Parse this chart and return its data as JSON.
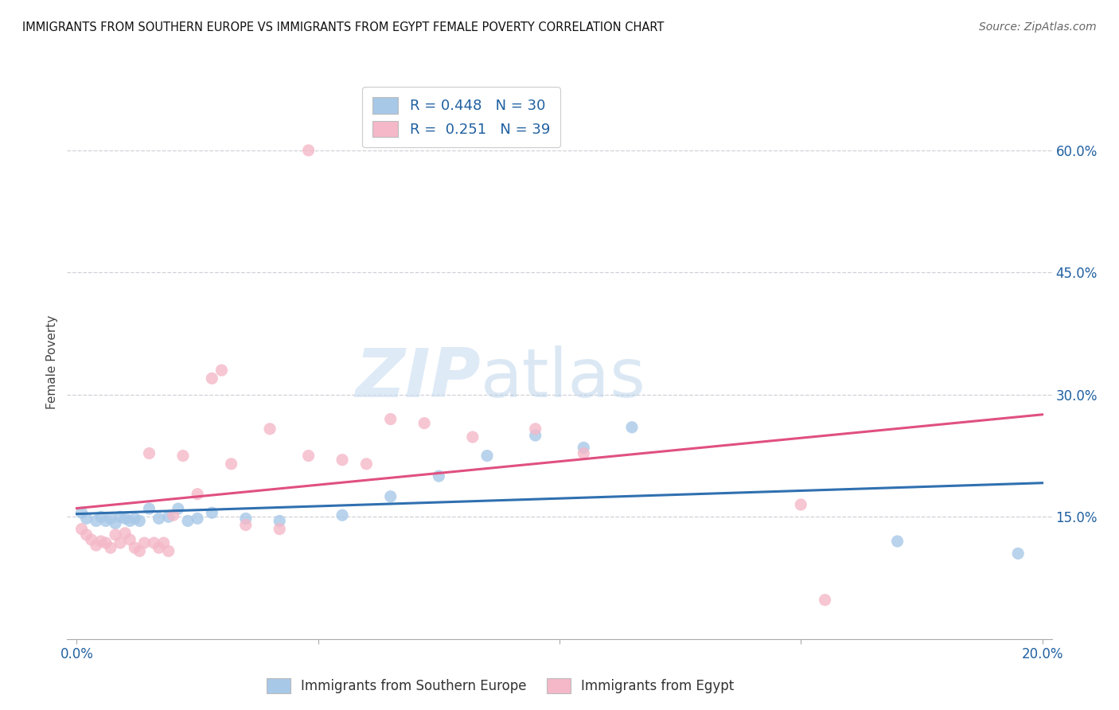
{
  "title": "IMMIGRANTS FROM SOUTHERN EUROPE VS IMMIGRANTS FROM EGYPT FEMALE POVERTY CORRELATION CHART",
  "source": "Source: ZipAtlas.com",
  "ylabel": "Female Poverty",
  "ylabel_right_ticks": [
    "60.0%",
    "45.0%",
    "30.0%",
    "15.0%"
  ],
  "ylabel_right_vals": [
    0.6,
    0.45,
    0.3,
    0.15
  ],
  "xlim": [
    -0.002,
    0.202
  ],
  "ylim": [
    0.0,
    0.68
  ],
  "R_blue": 0.448,
  "N_blue": 30,
  "R_pink": 0.251,
  "N_pink": 39,
  "legend_label_blue": "Immigrants from Southern Europe",
  "legend_label_pink": "Immigrants from Egypt",
  "blue_color": "#a8c8e8",
  "pink_color": "#f4b8c8",
  "blue_line_color": "#3070b0",
  "pink_line_color": "#e05080",
  "grid_color": "#d0d0d8",
  "background_color": "#ffffff",
  "blue_x": [
    0.001,
    0.002,
    0.004,
    0.005,
    0.006,
    0.007,
    0.008,
    0.009,
    0.01,
    0.011,
    0.012,
    0.013,
    0.015,
    0.017,
    0.019,
    0.021,
    0.023,
    0.025,
    0.028,
    0.035,
    0.042,
    0.055,
    0.065,
    0.075,
    0.085,
    0.095,
    0.105,
    0.115,
    0.17,
    0.195
  ],
  "blue_y": [
    0.155,
    0.148,
    0.145,
    0.15,
    0.145,
    0.148,
    0.142,
    0.15,
    0.148,
    0.145,
    0.148,
    0.145,
    0.16,
    0.148,
    0.15,
    0.16,
    0.145,
    0.148,
    0.155,
    0.148,
    0.145,
    0.152,
    0.175,
    0.2,
    0.225,
    0.25,
    0.235,
    0.26,
    0.12,
    0.105
  ],
  "pink_x": [
    0.001,
    0.002,
    0.003,
    0.004,
    0.005,
    0.006,
    0.007,
    0.008,
    0.009,
    0.01,
    0.011,
    0.012,
    0.013,
    0.014,
    0.015,
    0.016,
    0.017,
    0.018,
    0.019,
    0.02,
    0.022,
    0.025,
    0.028,
    0.03,
    0.032,
    0.035,
    0.04,
    0.042,
    0.048,
    0.055,
    0.06,
    0.065,
    0.072,
    0.082,
    0.095,
    0.105,
    0.15,
    0.155,
    0.048
  ],
  "pink_y": [
    0.135,
    0.128,
    0.122,
    0.115,
    0.12,
    0.118,
    0.112,
    0.128,
    0.118,
    0.13,
    0.122,
    0.112,
    0.108,
    0.118,
    0.228,
    0.118,
    0.112,
    0.118,
    0.108,
    0.152,
    0.225,
    0.178,
    0.32,
    0.33,
    0.215,
    0.14,
    0.258,
    0.135,
    0.225,
    0.22,
    0.215,
    0.27,
    0.265,
    0.248,
    0.258,
    0.228,
    0.165,
    0.048,
    0.6
  ]
}
